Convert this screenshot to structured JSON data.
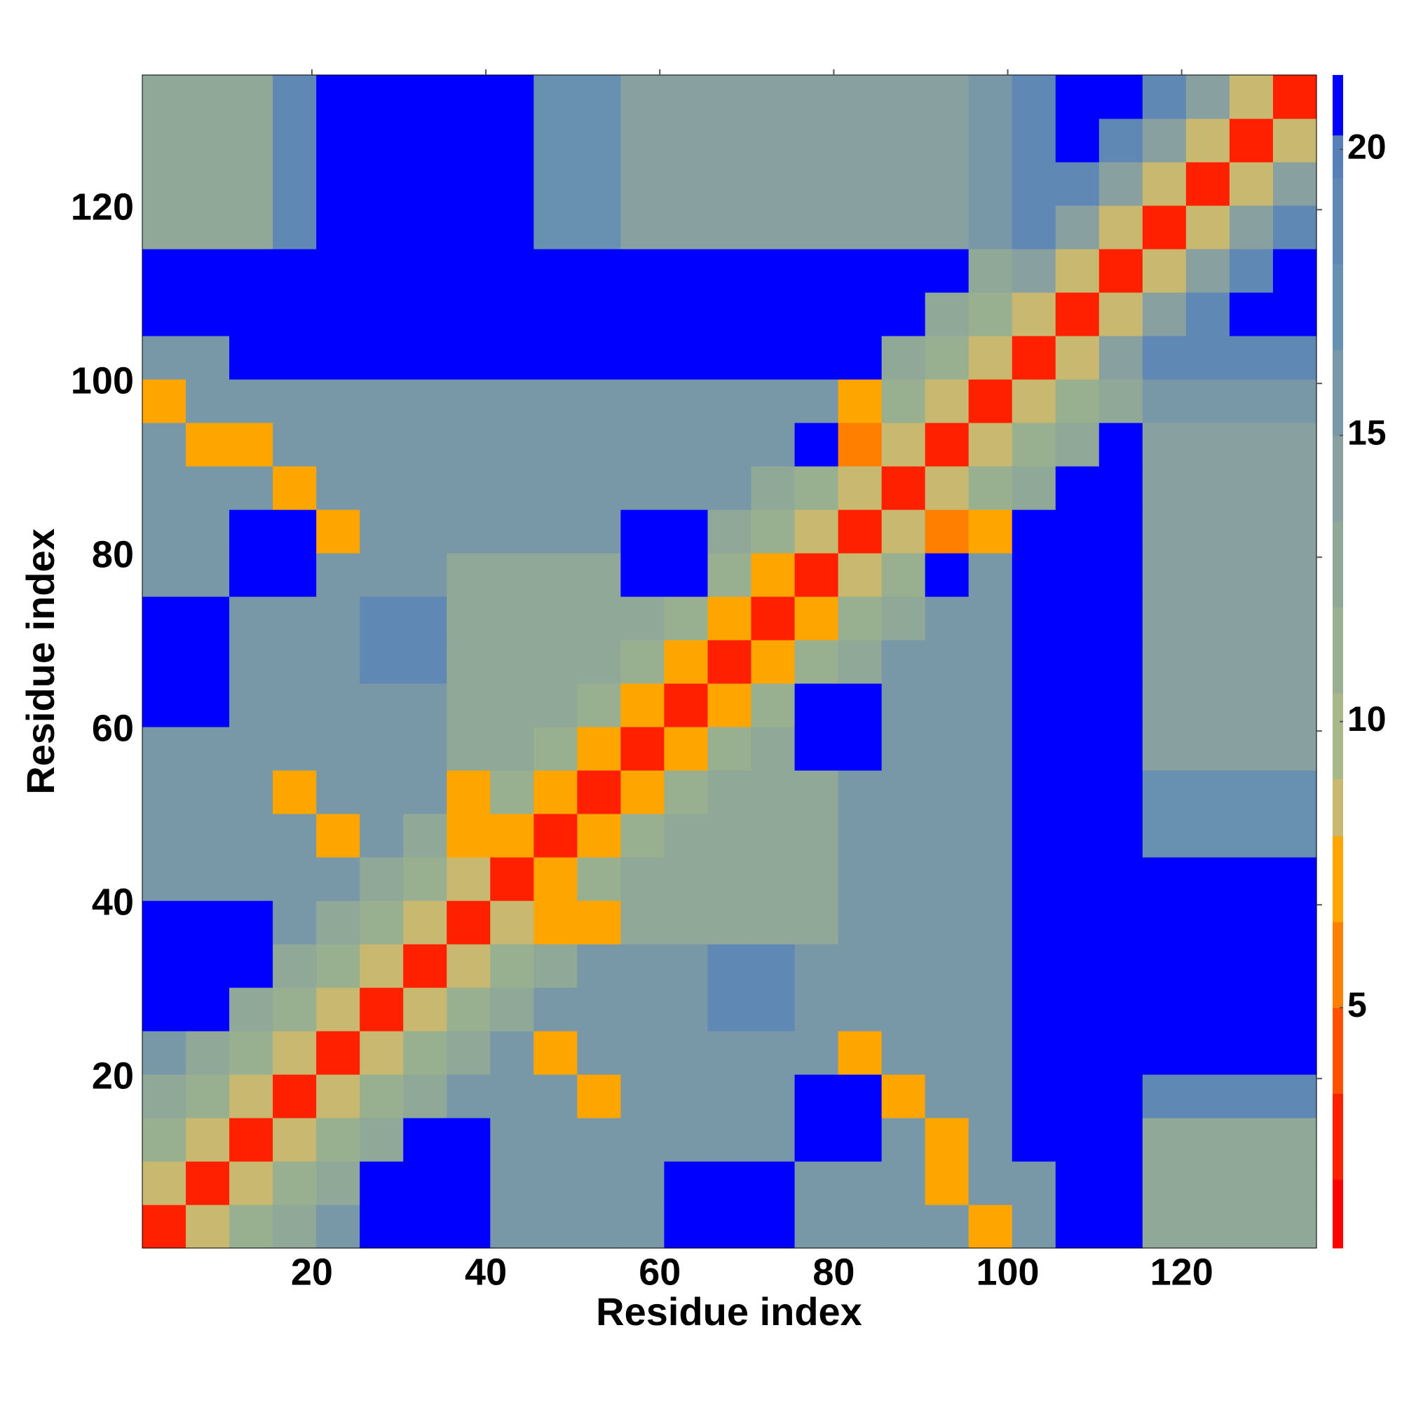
{
  "chart_data": {
    "type": "heatmap",
    "xlabel": "Residue index",
    "ylabel": "Residue index",
    "x": [
      3,
      8,
      13,
      18,
      23,
      28,
      33,
      38,
      43,
      48,
      53,
      58,
      63,
      68,
      73,
      78,
      83,
      88,
      93,
      98,
      103,
      108,
      113,
      118,
      123,
      128,
      133
    ],
    "y": [
      3,
      8,
      13,
      18,
      23,
      28,
      33,
      38,
      43,
      48,
      53,
      58,
      63,
      68,
      73,
      78,
      83,
      88,
      93,
      98,
      103,
      108,
      113,
      118,
      123,
      128,
      133
    ],
    "z": [
      [
        3,
        8,
        11,
        13,
        15,
        21,
        21,
        21,
        15,
        15,
        15,
        15,
        21,
        21,
        21,
        15,
        15,
        15,
        15,
        7,
        15,
        21,
        21,
        13,
        13,
        13,
        13
      ],
      [
        8,
        3,
        8,
        11,
        13,
        21,
        21,
        21,
        15,
        15,
        15,
        15,
        21,
        21,
        21,
        15,
        15,
        15,
        7,
        15,
        15,
        21,
        21,
        13,
        13,
        13,
        13
      ],
      [
        11,
        8,
        3,
        8,
        11,
        13,
        21,
        21,
        15,
        15,
        15,
        15,
        15,
        15,
        15,
        21,
        21,
        15,
        7,
        15,
        21,
        21,
        21,
        13,
        13,
        13,
        13
      ],
      [
        13,
        11,
        8,
        3,
        8,
        11,
        13,
        15,
        15,
        15,
        7,
        15,
        15,
        15,
        15,
        21,
        21,
        7,
        15,
        15,
        21,
        21,
        21,
        19,
        19,
        19,
        19
      ],
      [
        15,
        13,
        11,
        8,
        3,
        8,
        11,
        13,
        15,
        7,
        15,
        15,
        15,
        15,
        15,
        15,
        7,
        15,
        15,
        15,
        21,
        21,
        21,
        21,
        21,
        21,
        21
      ],
      [
        21,
        21,
        13,
        11,
        8,
        3,
        8,
        11,
        13,
        15,
        15,
        15,
        15,
        19,
        19,
        15,
        15,
        15,
        15,
        15,
        21,
        21,
        21,
        21,
        21,
        21,
        21
      ],
      [
        21,
        21,
        21,
        13,
        11,
        8,
        3,
        8,
        11,
        13,
        15,
        15,
        15,
        19,
        19,
        15,
        15,
        15,
        15,
        15,
        21,
        21,
        21,
        21,
        21,
        21,
        21
      ],
      [
        21,
        21,
        21,
        15,
        13,
        11,
        8,
        3,
        8,
        7,
        7,
        13,
        13,
        13,
        13,
        13,
        15,
        15,
        15,
        15,
        21,
        21,
        21,
        21,
        21,
        21,
        21
      ],
      [
        15,
        15,
        15,
        15,
        15,
        13,
        11,
        8,
        3,
        7,
        11,
        13,
        13,
        13,
        13,
        13,
        15,
        15,
        15,
        15,
        21,
        21,
        21,
        21,
        21,
        21,
        21
      ],
      [
        15,
        15,
        15,
        15,
        7,
        15,
        13,
        7,
        7,
        3,
        7,
        11,
        13,
        13,
        13,
        13,
        15,
        15,
        15,
        15,
        21,
        21,
        21,
        17,
        17,
        17,
        17
      ],
      [
        15,
        15,
        15,
        7,
        15,
        15,
        15,
        7,
        11,
        7,
        3,
        7,
        11,
        13,
        13,
        13,
        15,
        15,
        15,
        15,
        21,
        21,
        21,
        17,
        17,
        17,
        17
      ],
      [
        15,
        15,
        15,
        15,
        15,
        15,
        15,
        13,
        13,
        11,
        7,
        3,
        7,
        11,
        13,
        21,
        21,
        15,
        15,
        15,
        21,
        21,
        21,
        14,
        14,
        14,
        14
      ],
      [
        21,
        21,
        15,
        15,
        15,
        15,
        15,
        13,
        13,
        13,
        11,
        7,
        3,
        7,
        11,
        21,
        21,
        15,
        15,
        15,
        21,
        21,
        21,
        14,
        14,
        14,
        14
      ],
      [
        21,
        21,
        15,
        15,
        15,
        19,
        19,
        13,
        13,
        13,
        13,
        11,
        7,
        3,
        7,
        11,
        13,
        15,
        15,
        15,
        21,
        21,
        21,
        14,
        14,
        14,
        14
      ],
      [
        21,
        21,
        15,
        15,
        15,
        19,
        19,
        13,
        13,
        13,
        13,
        13,
        11,
        7,
        3,
        7,
        11,
        13,
        15,
        15,
        21,
        21,
        21,
        14,
        14,
        14,
        14
      ],
      [
        15,
        15,
        21,
        21,
        15,
        15,
        15,
        13,
        13,
        13,
        13,
        21,
        21,
        11,
        7,
        3,
        8,
        11,
        21,
        15,
        21,
        21,
        21,
        14,
        14,
        14,
        14
      ],
      [
        15,
        15,
        21,
        21,
        7,
        15,
        15,
        15,
        15,
        15,
        15,
        21,
        21,
        13,
        11,
        8,
        3,
        8,
        6,
        7,
        21,
        21,
        21,
        14,
        14,
        14,
        14
      ],
      [
        15,
        15,
        15,
        7,
        15,
        15,
        15,
        15,
        15,
        15,
        15,
        15,
        15,
        15,
        13,
        11,
        8,
        3,
        8,
        11,
        13,
        21,
        21,
        14,
        14,
        14,
        14
      ],
      [
        15,
        7,
        7,
        15,
        15,
        15,
        15,
        15,
        15,
        15,
        15,
        15,
        15,
        15,
        15,
        21,
        6,
        8,
        3,
        8,
        11,
        13,
        21,
        14,
        14,
        14,
        14
      ],
      [
        7,
        15,
        15,
        15,
        15,
        15,
        15,
        15,
        15,
        15,
        15,
        15,
        15,
        15,
        15,
        15,
        7,
        11,
        8,
        3,
        8,
        11,
        13,
        16,
        16,
        16,
        16
      ],
      [
        15,
        15,
        21,
        21,
        21,
        21,
        21,
        21,
        21,
        21,
        21,
        21,
        21,
        21,
        21,
        21,
        21,
        13,
        11,
        8,
        3,
        8,
        14,
        19,
        18,
        18,
        18
      ],
      [
        21,
        21,
        21,
        21,
        21,
        21,
        21,
        21,
        21,
        21,
        21,
        21,
        21,
        21,
        21,
        21,
        21,
        21,
        13,
        11,
        8,
        3,
        8,
        14,
        19,
        21,
        21
      ],
      [
        21,
        21,
        21,
        21,
        21,
        21,
        21,
        21,
        21,
        21,
        21,
        21,
        21,
        21,
        21,
        21,
        21,
        21,
        21,
        13,
        14,
        8,
        3,
        8,
        14,
        19,
        21
      ],
      [
        13,
        13,
        13,
        19,
        21,
        21,
        21,
        21,
        21,
        17,
        17,
        14,
        14,
        14,
        14,
        14,
        14,
        14,
        14,
        16,
        19,
        14,
        8,
        3,
        8,
        14,
        19
      ],
      [
        13,
        13,
        13,
        19,
        21,
        21,
        21,
        21,
        21,
        17,
        17,
        14,
        14,
        14,
        14,
        14,
        14,
        14,
        14,
        16,
        18,
        19,
        14,
        8,
        3,
        8,
        14
      ],
      [
        13,
        13,
        13,
        19,
        21,
        21,
        21,
        21,
        21,
        17,
        17,
        14,
        14,
        14,
        14,
        14,
        14,
        14,
        14,
        16,
        18,
        21,
        19,
        14,
        8,
        3,
        8
      ],
      [
        13,
        13,
        13,
        19,
        21,
        21,
        21,
        21,
        21,
        17,
        17,
        14,
        14,
        14,
        14,
        14,
        14,
        14,
        14,
        16,
        18,
        21,
        21,
        19,
        14,
        8,
        3
      ]
    ],
    "xlim": [
      0.5,
      135.5
    ],
    "ylim": [
      0.5,
      135.5
    ],
    "xticks": [
      20,
      40,
      60,
      80,
      100,
      120
    ],
    "yticks": [
      20,
      40,
      60,
      80,
      100,
      120
    ],
    "colorbar": {
      "levels": [
        0.8,
        2,
        3.5,
        5,
        6.5,
        8,
        9,
        10.5,
        12,
        13.5,
        15,
        16.5,
        18,
        19.5,
        20.25,
        21.3
      ],
      "colors": [
        "#ff0000",
        "#ff2000",
        "#ff5000",
        "#ff8000",
        "#ffa500",
        "#c8b870",
        "#a8b888",
        "#98b090",
        "#90a898",
        "#88a0a0",
        "#7898a8",
        "#6890b0",
        "#6088b4",
        "#5880b8",
        "#0000ff"
      ],
      "ticks": [
        5,
        10,
        15,
        20
      ]
    }
  }
}
